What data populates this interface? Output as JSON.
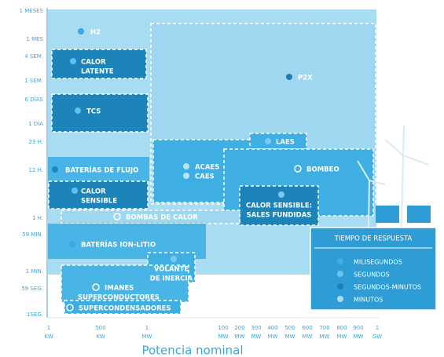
{
  "y_axis": {
    "labels": [
      "1 MESES",
      "1 MES",
      "4 SEM.",
      "1 SEM.",
      "6 DÍAS",
      "1 DÍA",
      "23 H.",
      "12 H.",
      "1 H.",
      "59 MIN.",
      "1 MIN.",
      "59 SEG.",
      "1SEG."
    ]
  },
  "x_axis": {
    "labels": [
      {
        "top": "1",
        "bottom": "KW"
      },
      {
        "top": "500",
        "bottom": "KW"
      },
      {
        "top": "1",
        "bottom": "MW"
      },
      {
        "top": "100",
        "bottom": "MW"
      },
      {
        "top": "200",
        "bottom": "MW"
      },
      {
        "top": "300",
        "bottom": "MW"
      },
      {
        "top": "400",
        "bottom": "MW"
      },
      {
        "top": "500",
        "bottom": "MW"
      },
      {
        "top": "600",
        "bottom": "MW"
      },
      {
        "top": "700",
        "bottom": "MW"
      },
      {
        "top": "800",
        "bottom": "MW"
      },
      {
        "top": "900",
        "bottom": "MW"
      },
      {
        "top": "1",
        "bottom": "GW"
      }
    ],
    "title": "Potencia nominal"
  },
  "technologies": [
    {
      "lines": [
        "H2"
      ]
    },
    {
      "lines": [
        "P2X"
      ]
    },
    {
      "lines": [
        "CALOR",
        "LATENTE"
      ]
    },
    {
      "lines": [
        "TCS"
      ]
    },
    {
      "lines": [
        "LAES"
      ]
    },
    {
      "lines": [
        "ACAES"
      ]
    },
    {
      "lines": [
        "CAES"
      ]
    },
    {
      "lines": [
        "BATERÍAS DE FLUJO"
      ]
    },
    {
      "lines": [
        "BOMBEO"
      ]
    },
    {
      "lines": [
        "CALOR",
        "SENSIBLE"
      ]
    },
    {
      "lines": [
        "CALOR SENSIBLE:",
        "SALES FUNDIDAS"
      ]
    },
    {
      "lines": [
        "BOMBAS DE CALOR"
      ]
    },
    {
      "lines": [
        "BATERÍAS ION-LITIO"
      ]
    },
    {
      "lines": [
        "VOLANTE",
        "DE INERCIA"
      ]
    },
    {
      "lines": [
        "IMANES",
        "SUPERCONDUCTORES"
      ]
    },
    {
      "lines": [
        "SUPERCONDENSADORES"
      ]
    }
  ],
  "legend": {
    "title": "TIEMPO DE RESPUESTA",
    "items": [
      "MILISEGUNDOS",
      "SEGUNDOS",
      "SEGUNDOS-MINUTOS",
      "MINUTOS"
    ]
  }
}
